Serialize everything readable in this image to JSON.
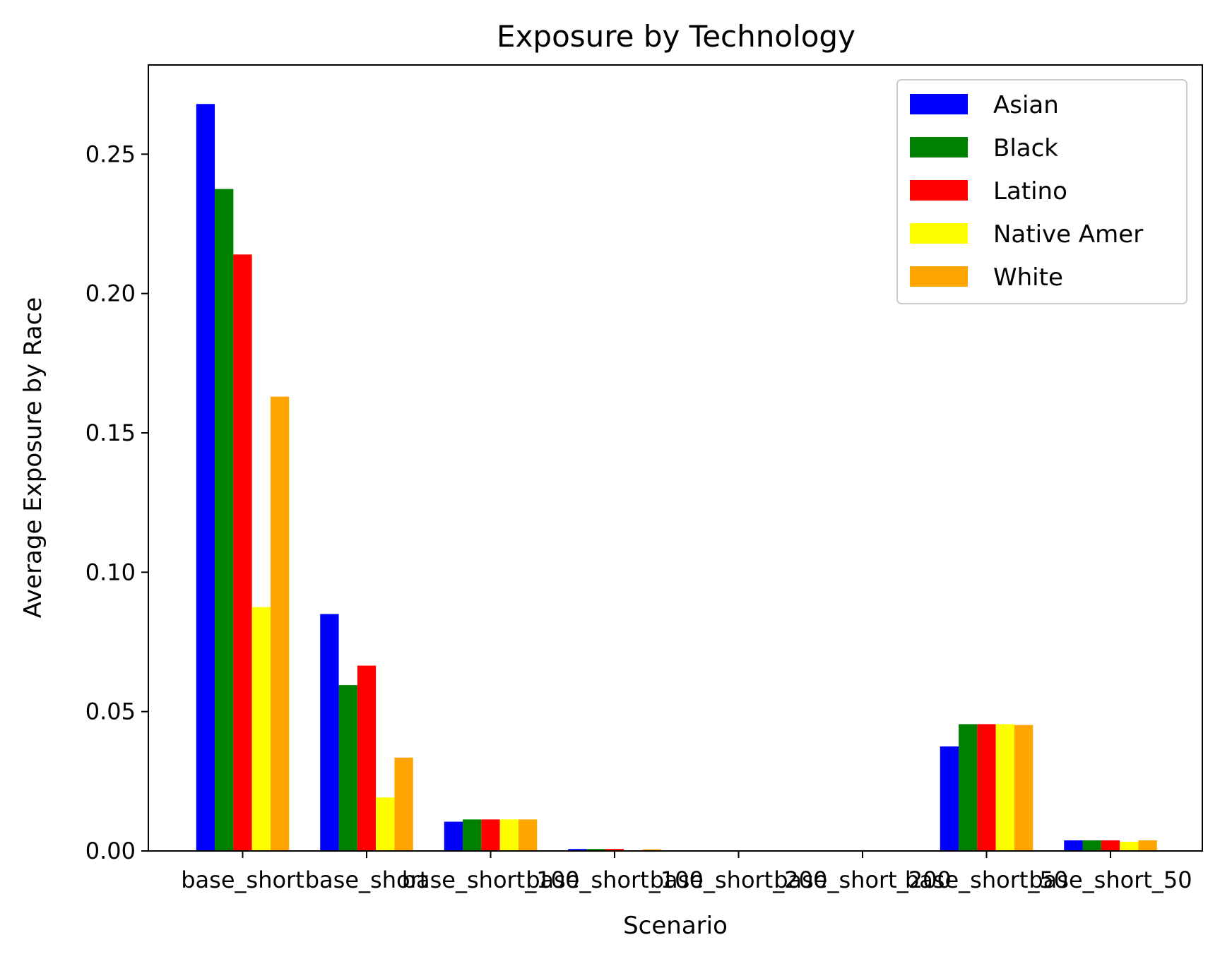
{
  "chart_data": {
    "type": "bar",
    "title": "Exposure by Technology",
    "xlabel": "Scenario",
    "ylabel": "Average Exposure by Race",
    "ylim": [
      0,
      0.282
    ],
    "yticks": [
      0.0,
      0.05,
      0.1,
      0.15,
      0.2,
      0.25
    ],
    "ytick_labels": [
      "0.00",
      "0.05",
      "0.10",
      "0.15",
      "0.20",
      "0.25"
    ],
    "categories": [
      "base_short",
      "base_short",
      "base_short_100",
      "base_short_100",
      "base_short_200",
      "base_short_200",
      "base_short_50",
      "base_short_50"
    ],
    "category_labels": [
      "base_short",
      "base_short",
      "base_short_100",
      "base_short_100",
      "base_short_200",
      "base_short_200",
      "base_short_50",
      "base_short_50"
    ],
    "series": [
      {
        "name": "Asian",
        "color": "#0000ff",
        "values": [
          0.268,
          0.085,
          0.0105,
          0.0007,
          0.0,
          0.0,
          0.0375,
          0.0038
        ]
      },
      {
        "name": "Black",
        "color": "#008000",
        "values": [
          0.2375,
          0.0595,
          0.0113,
          0.0007,
          0.0,
          0.0,
          0.0455,
          0.0038
        ]
      },
      {
        "name": "Latino",
        "color": "#ff0000",
        "values": [
          0.214,
          0.0665,
          0.0113,
          0.0007,
          0.0,
          0.0,
          0.0455,
          0.0038
        ]
      },
      {
        "name": "Native Amer",
        "color": "#ffff00",
        "values": [
          0.0875,
          0.0192,
          0.0113,
          0.0002,
          0.0,
          0.0,
          0.0455,
          0.0033
        ]
      },
      {
        "name": "White",
        "color": "#ffa500",
        "values": [
          0.163,
          0.0335,
          0.0113,
          0.0006,
          0.0,
          0.0,
          0.0452,
          0.0038
        ]
      }
    ],
    "legend_position": "top-right",
    "grid": false
  }
}
